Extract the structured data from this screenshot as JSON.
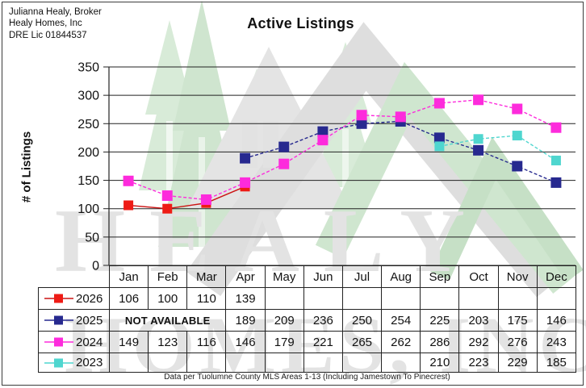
{
  "header": {
    "line1": "Julianna Healy, Broker",
    "line2": "Healy Homes, Inc",
    "line3": "DRE Lic 01844537"
  },
  "title": "Active Listings",
  "watermark": {
    "line1": "HEALY",
    "line2": "HOMES, INC"
  },
  "footer_note": "Data per Tuolumne County MLS Areas 1-13 (Including Jamestown To Pinecrest)",
  "chart_data": {
    "type": "line",
    "title": "Active Listings",
    "xlabel": "",
    "ylabel": "# of Listings",
    "ylim": [
      0,
      350
    ],
    "ytick_step": 50,
    "grid": true,
    "legend_position": "table-left",
    "categories": [
      "Jan",
      "Feb",
      "Mar",
      "Apr",
      "May",
      "Jun",
      "Jul",
      "Aug",
      "Sep",
      "Oct",
      "Nov",
      "Dec"
    ],
    "series": [
      {
        "name": "2026",
        "color": "#ee1b15",
        "line_color": "#cc1414",
        "line_style": "solid",
        "marker_size": 12,
        "values": [
          106,
          100,
          110,
          139,
          null,
          null,
          null,
          null,
          null,
          null,
          null,
          null
        ]
      },
      {
        "name": "2025",
        "color": "#27298f",
        "line_color": "#27298f",
        "line_style": "dashed",
        "marker_size": 13,
        "table_note": "NOT AVAILABLE",
        "note_span": [
          0,
          2
        ],
        "values": [
          null,
          null,
          null,
          189,
          209,
          236,
          250,
          254,
          225,
          203,
          175,
          146
        ]
      },
      {
        "name": "2024",
        "color": "#fd2bdc",
        "line_color": "#fd2bdc",
        "line_style": "dashed",
        "marker_size": 13,
        "values": [
          149,
          123,
          116,
          146,
          179,
          221,
          265,
          262,
          286,
          292,
          276,
          243
        ]
      },
      {
        "name": "2023",
        "color": "#4fd6cf",
        "line_color": "#4fd6cf",
        "line_style": "dashed",
        "marker_size": 12,
        "values": [
          null,
          null,
          null,
          null,
          null,
          null,
          null,
          null,
          210,
          223,
          229,
          185
        ]
      }
    ]
  }
}
